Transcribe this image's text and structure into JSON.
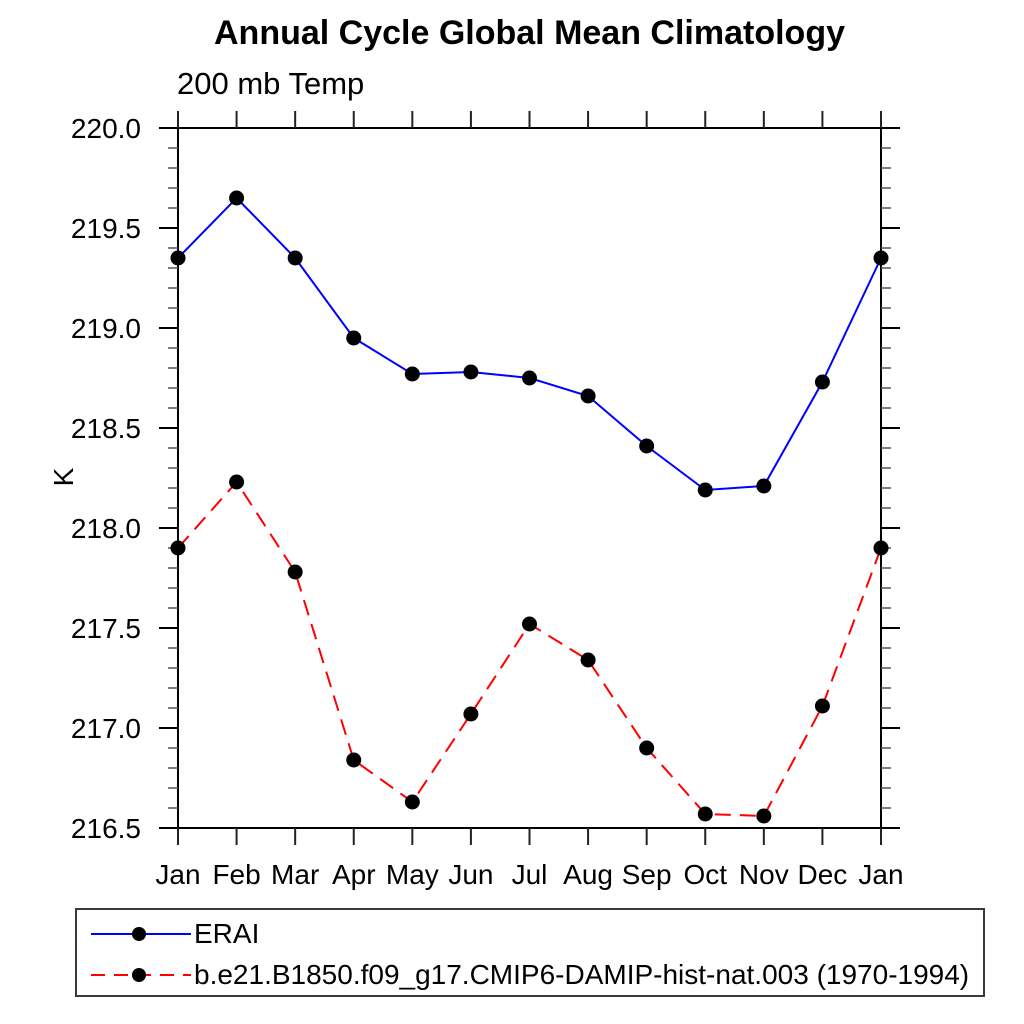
{
  "chart_data": {
    "type": "line",
    "title": "Annual Cycle Global Mean Climatology",
    "subtitle": "200 mb Temp",
    "xlabel": "",
    "ylabel": "K",
    "categories": [
      "Jan",
      "Feb",
      "Mar",
      "Apr",
      "May",
      "Jun",
      "Jul",
      "Aug",
      "Sep",
      "Oct",
      "Nov",
      "Dec",
      "Jan"
    ],
    "ylim": [
      216.5,
      220.0
    ],
    "ytick_major_step": 0.5,
    "ytick_minor_step": 0.1,
    "ytick_labels": [
      "216.5",
      "217.0",
      "217.5",
      "218.0",
      "218.5",
      "219.0",
      "219.5",
      "220.0"
    ],
    "grid": false,
    "legend_position": "bottom-left-box",
    "axis_color": "#000000",
    "text_color": "#000000",
    "marker": "filled-circle",
    "marker_color": "#000000",
    "series": [
      {
        "name": "ERAI",
        "color": "#0000ff",
        "line_style": "solid",
        "values": [
          219.35,
          219.65,
          219.35,
          218.95,
          218.77,
          218.78,
          218.75,
          218.66,
          218.41,
          218.19,
          218.21,
          218.73,
          219.35
        ]
      },
      {
        "name": "b.e21.B1850.f09_g17.CMIP6-DAMIP-hist-nat.003 (1970-1994)",
        "color": "#ff0000",
        "line_style": "dashed",
        "values": [
          217.9,
          218.23,
          217.78,
          216.84,
          216.63,
          217.07,
          217.52,
          217.34,
          216.9,
          216.57,
          216.56,
          217.11,
          217.9
        ]
      }
    ]
  }
}
